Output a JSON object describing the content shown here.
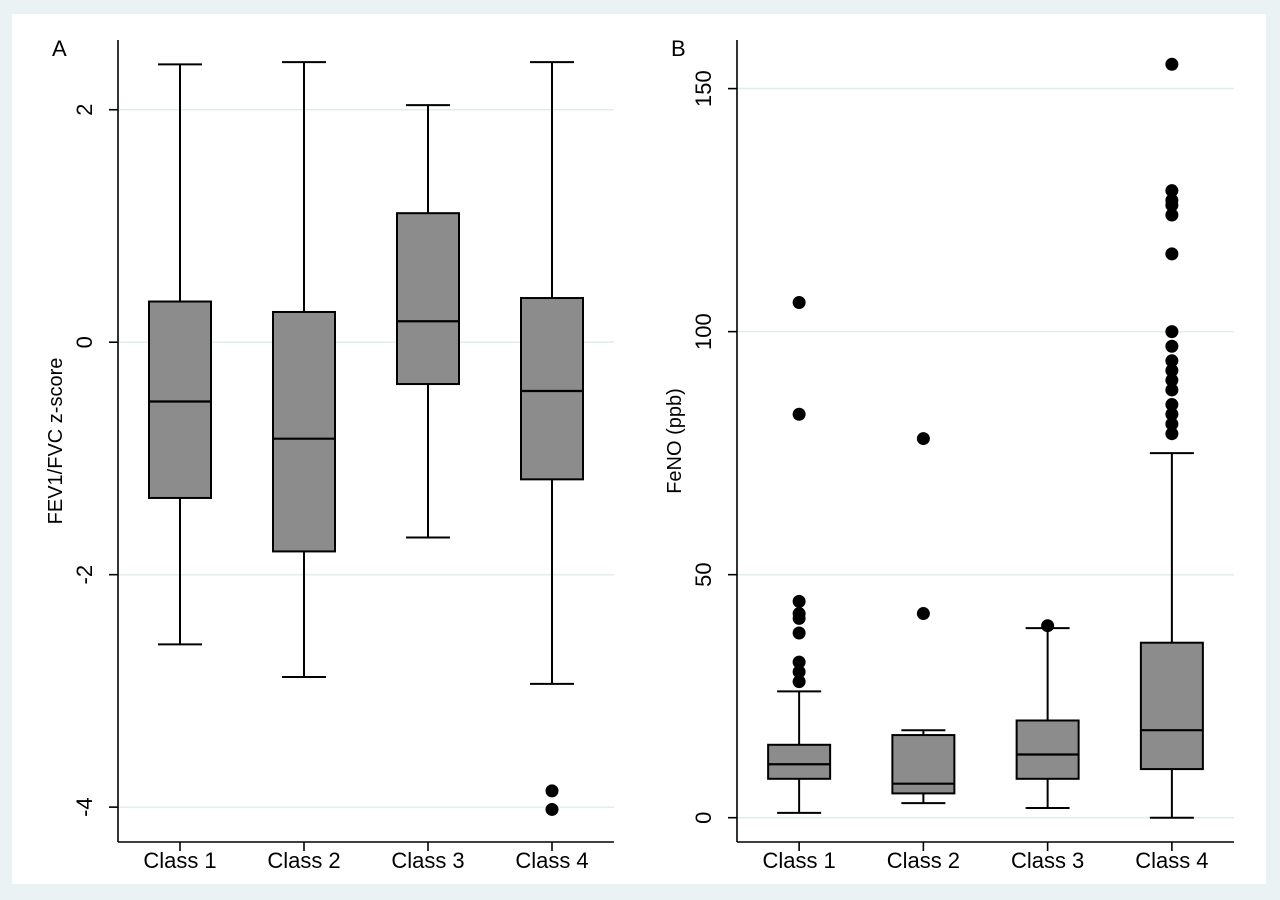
{
  "chart_data": [
    {
      "type": "box",
      "panel_label": "A",
      "xlabel": "",
      "ylabel": "FEV1/FVC z-score",
      "categories": [
        "Class 1",
        "Class 2",
        "Class 3",
        "Class 4"
      ],
      "ylim": [
        -4.3,
        2.6
      ],
      "yticks": [
        -4,
        -2,
        0,
        2
      ],
      "ytick_labels": [
        "-4",
        "-2",
        "0",
        "2"
      ],
      "y_grid": true,
      "boxes": [
        {
          "name": "Class 1",
          "whisker_low": -2.6,
          "q1": -1.34,
          "median": -0.51,
          "q3": 0.35,
          "whisker_high": 2.39,
          "outliers": []
        },
        {
          "name": "Class 2",
          "whisker_low": -2.88,
          "q1": -1.8,
          "median": -0.83,
          "q3": 0.26,
          "whisker_high": 2.41,
          "outliers": []
        },
        {
          "name": "Class 3",
          "whisker_low": -1.68,
          "q1": -0.36,
          "median": 0.18,
          "q3": 1.11,
          "whisker_high": 2.04,
          "outliers": []
        },
        {
          "name": "Class 4",
          "whisker_low": -2.94,
          "q1": -1.18,
          "median": -0.42,
          "q3": 0.38,
          "whisker_high": 2.41,
          "outliers": [
            -3.86,
            -4.02
          ]
        }
      ]
    },
    {
      "type": "box",
      "panel_label": "B",
      "xlabel": "",
      "ylabel": "FeNO (ppb)",
      "categories": [
        "Class 1",
        "Class 2",
        "Class 3",
        "Class 4"
      ],
      "ylim": [
        -5,
        160
      ],
      "yticks": [
        0,
        50,
        100,
        150
      ],
      "ytick_labels": [
        "0",
        "50",
        "100",
        "150"
      ],
      "y_grid": true,
      "boxes": [
        {
          "name": "Class 1",
          "whisker_low": 1,
          "q1": 8,
          "median": 11,
          "q3": 15,
          "whisker_high": 26,
          "outliers": [
            28,
            30,
            32,
            38,
            41,
            42,
            44.5,
            83,
            106
          ]
        },
        {
          "name": "Class 2",
          "whisker_low": 3,
          "q1": 5,
          "median": 7,
          "q3": 17,
          "whisker_high": 18,
          "outliers": [
            42,
            78
          ]
        },
        {
          "name": "Class 3",
          "whisker_low": 2,
          "q1": 8,
          "median": 13,
          "q3": 20,
          "whisker_high": 39,
          "outliers": [
            39.5
          ]
        },
        {
          "name": "Class 4",
          "whisker_low": 0,
          "q1": 10,
          "median": 18,
          "q3": 36,
          "whisker_high": 75,
          "outliers": [
            79,
            81,
            83,
            85,
            88,
            90,
            92,
            94,
            97,
            100,
            116,
            124,
            126,
            127,
            129,
            155
          ]
        }
      ]
    }
  ]
}
